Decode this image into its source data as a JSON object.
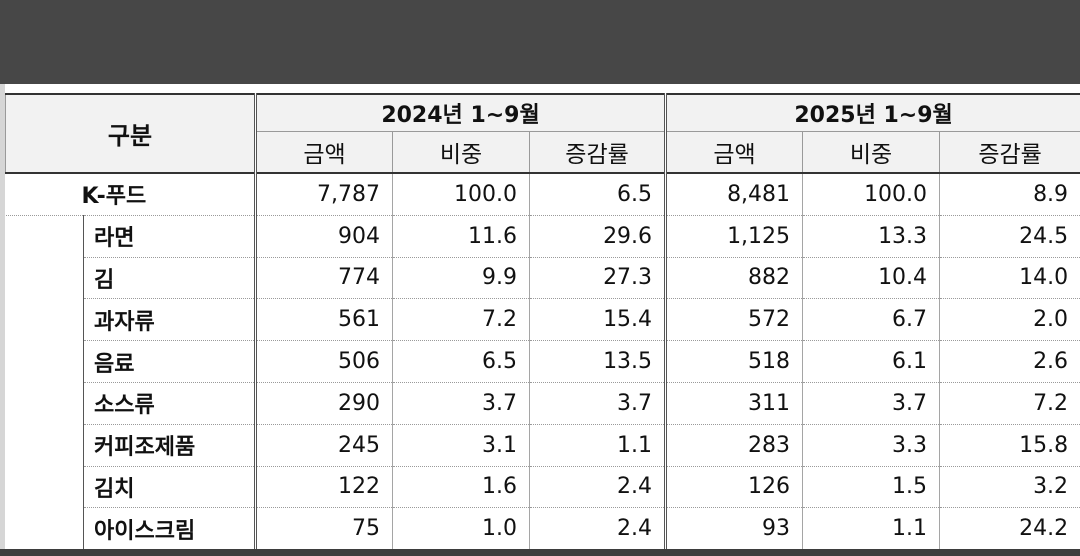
{
  "table": {
    "header": {
      "category": "구분",
      "group_2024": "2024년 1~9월",
      "group_2025": "2025년 1~9월",
      "col_amount": "금액",
      "col_share": "비중",
      "col_growth": "증감률"
    },
    "total": {
      "label": "K-푸드",
      "v2024": [
        "7,787",
        "100.0",
        "6.5"
      ],
      "v2025": [
        "8,481",
        "100.0",
        "8.9"
      ]
    },
    "rows": [
      {
        "label": "라면",
        "v2024": [
          "904",
          "11.6",
          "29.6"
        ],
        "v2025": [
          "1,125",
          "13.3",
          "24.5"
        ]
      },
      {
        "label": "김",
        "v2024": [
          "774",
          "9.9",
          "27.3"
        ],
        "v2025": [
          "882",
          "10.4",
          "14.0"
        ]
      },
      {
        "label": "과자류",
        "v2024": [
          "561",
          "7.2",
          "15.4"
        ],
        "v2025": [
          "572",
          "6.7",
          "2.0"
        ]
      },
      {
        "label": "음료",
        "v2024": [
          "506",
          "6.5",
          "13.5"
        ],
        "v2025": [
          "518",
          "6.1",
          "2.6"
        ]
      },
      {
        "label": "소스류",
        "v2024": [
          "290",
          "3.7",
          "3.7"
        ],
        "v2025": [
          "311",
          "3.7",
          "7.2"
        ]
      },
      {
        "label": "커피조제품",
        "v2024": [
          "245",
          "3.1",
          "1.1"
        ],
        "v2025": [
          "283",
          "3.3",
          "15.8"
        ]
      },
      {
        "label": "김치",
        "v2024": [
          "122",
          "1.6",
          "2.4"
        ],
        "v2025": [
          "126",
          "1.5",
          "3.2"
        ]
      },
      {
        "label": "아이스크림",
        "v2024": [
          "75",
          "1.0",
          "2.4"
        ],
        "v2025": [
          "93",
          "1.1",
          "24.2"
        ]
      }
    ]
  }
}
